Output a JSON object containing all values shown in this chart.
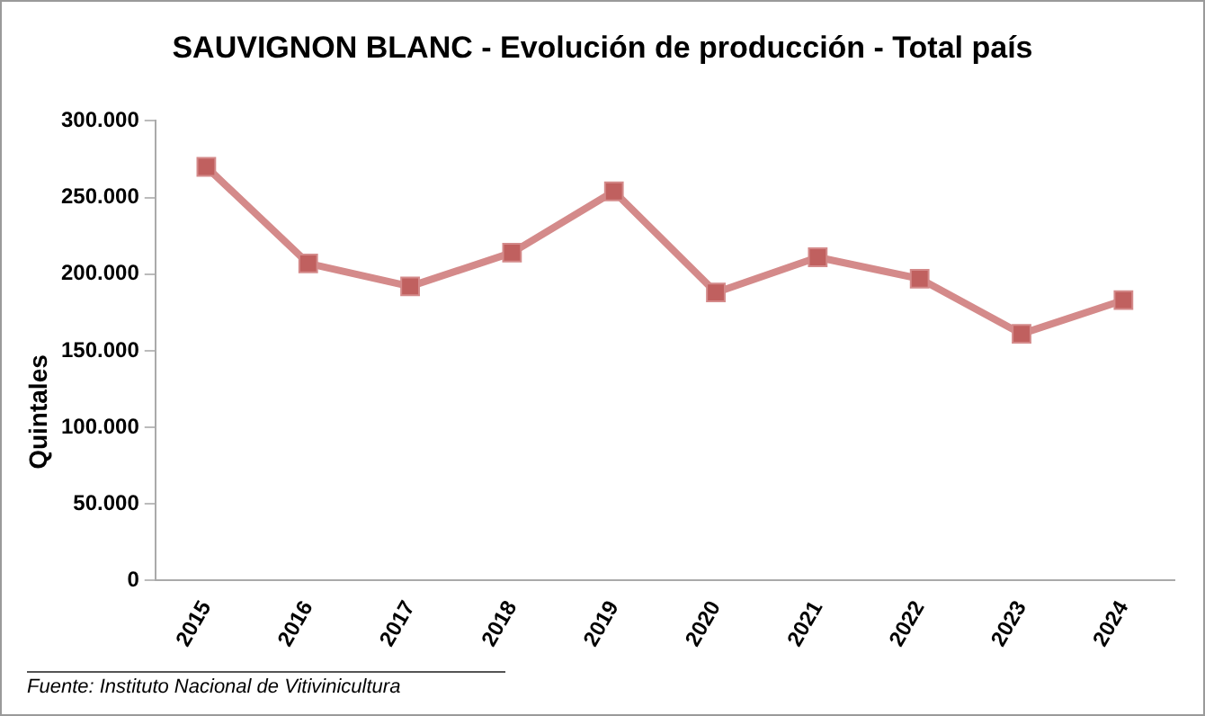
{
  "chart_data": {
    "type": "line",
    "title": "SAUVIGNON BLANC - Evolución de producción - Total país",
    "ylabel": "Quintales",
    "categories": [
      "2015",
      "2016",
      "2017",
      "2018",
      "2019",
      "2020",
      "2021",
      "2022",
      "2023",
      "2024"
    ],
    "series": [
      {
        "color": "#d48a8a",
        "values": [
          270000,
          207000,
          192000,
          214000,
          254000,
          188000,
          211000,
          197000,
          161000,
          183000
        ]
      }
    ],
    "ylim": [
      0,
      300000
    ],
    "yticks": [
      {
        "value": 0,
        "label": "0"
      },
      {
        "value": 50000,
        "label": "50.000"
      },
      {
        "value": 100000,
        "label": "100.000"
      },
      {
        "value": 150000,
        "label": "150.000"
      },
      {
        "value": 200000,
        "label": "200.000"
      },
      {
        "value": 250000,
        "label": "250.000"
      },
      {
        "value": 300000,
        "label": "300.000"
      }
    ],
    "grid": false,
    "legend": false,
    "marker": "square",
    "line_style": "solid",
    "annotations": [
      "Fuente: Instituto Nacional de Vitivinicultura"
    ]
  }
}
